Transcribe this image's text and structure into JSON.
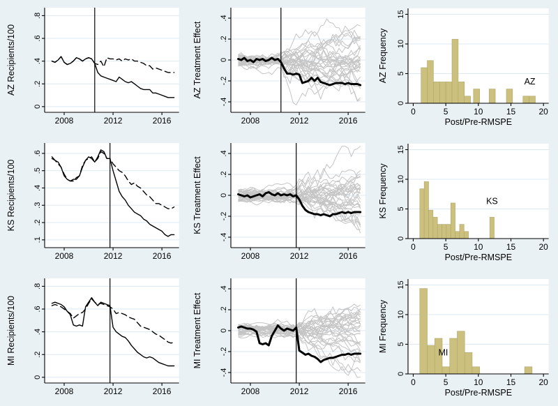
{
  "colors": {
    "page_background": "#eaf1f4",
    "plot_background": "#ffffff",
    "gridline": "#dde9f1",
    "axis": "#000000",
    "text": "#000000",
    "treated_line": "#000000",
    "synthetic_line": "#000000",
    "placebo_line": "#c4c4c4",
    "vline": "#000000",
    "bar_fill": "#ccc07e",
    "bar_edge": "#b2a66a"
  },
  "time_axis": [
    2007,
    2007.25,
    2007.5,
    2007.75,
    2008,
    2008.25,
    2008.5,
    2008.75,
    2009,
    2009.25,
    2009.5,
    2009.75,
    2010,
    2010.25,
    2010.5,
    2010.75,
    2011,
    2011.25,
    2011.5,
    2011.75,
    2012,
    2012.25,
    2012.5,
    2012.75,
    2013,
    2013.25,
    2013.5,
    2013.75,
    2014,
    2014.25,
    2014.5,
    2014.75,
    2015,
    2015.25,
    2015.5,
    2015.75,
    2016,
    2016.25,
    2016.5,
    2016.75,
    2017
  ],
  "chart_data": [
    {
      "id": "az-recipients",
      "type": "line",
      "ylabel": "AZ Recipients/100",
      "xlim": [
        2006.4,
        2017.4
      ],
      "ylim": [
        -0.05,
        0.87
      ],
      "xticks": [
        2008,
        2012,
        2016
      ],
      "xtick_labels": [
        "2008",
        "2012",
        "2016"
      ],
      "yticks": [
        0,
        0.2,
        0.4,
        0.6,
        0.8
      ],
      "ytick_labels": [
        "0",
        ".2",
        ".4",
        ".6",
        ".8"
      ],
      "treatment_year": 2010.5,
      "series": [
        {
          "name": "AZ actual",
          "style": "solid",
          "width": 1.4,
          "y": [
            0.4,
            0.39,
            0.41,
            0.44,
            0.39,
            0.37,
            0.38,
            0.4,
            0.43,
            0.42,
            0.4,
            0.42,
            0.43,
            0.42,
            0.38,
            0.3,
            0.27,
            0.26,
            0.25,
            0.24,
            0.23,
            0.22,
            0.26,
            0.24,
            0.22,
            0.21,
            0.22,
            0.2,
            0.18,
            0.16,
            0.15,
            0.15,
            0.15,
            0.12,
            0.12,
            0.11,
            0.1,
            0.09,
            0.08,
            0.08,
            0.08
          ]
        },
        {
          "name": "synthetic AZ",
          "style": "dashed",
          "width": 1.4,
          "y": [
            0.4,
            0.39,
            0.41,
            0.44,
            0.39,
            0.37,
            0.38,
            0.4,
            0.43,
            0.42,
            0.4,
            0.42,
            0.43,
            0.42,
            0.38,
            0.37,
            0.4,
            0.35,
            0.43,
            0.42,
            0.42,
            0.41,
            0.42,
            0.4,
            0.42,
            0.41,
            0.42,
            0.4,
            0.4,
            0.39,
            0.38,
            0.36,
            0.36,
            0.33,
            0.34,
            0.33,
            0.32,
            0.31,
            0.3,
            0.3,
            0.3
          ]
        }
      ]
    },
    {
      "id": "az-effect",
      "type": "line",
      "ylabel": "AZ Treatment Effect",
      "xlim": [
        2006.4,
        2017.4
      ],
      "ylim": [
        -0.5,
        0.5
      ],
      "xticks": [
        2008,
        2012,
        2016
      ],
      "xtick_labels": [
        "2008",
        "2012",
        "2016"
      ],
      "yticks": [
        -0.4,
        -0.2,
        0,
        0.2,
        0.4
      ],
      "ytick_labels": [
        "-.4",
        "-.2",
        "0",
        ".2",
        ".4"
      ],
      "treatment_year": 2010.5,
      "placebos": {
        "count": 32,
        "seed": 11
      },
      "series": [
        {
          "name": "AZ treatment effect",
          "style": "solid",
          "width": 3,
          "y": [
            0.01,
            0.0,
            0.02,
            -0.01,
            0.0,
            -0.02,
            0.01,
            0.0,
            0.01,
            -0.01,
            0.0,
            0.02,
            0.0,
            0.01,
            -0.02,
            -0.08,
            -0.13,
            -0.13,
            -0.14,
            -0.13,
            -0.14,
            -0.22,
            -0.21,
            -0.2,
            -0.17,
            -0.2,
            -0.17,
            -0.21,
            -0.22,
            -0.23,
            -0.24,
            -0.23,
            -0.22,
            -0.22,
            -0.22,
            -0.23,
            -0.22,
            -0.23,
            -0.23,
            -0.23,
            -0.24
          ]
        }
      ]
    },
    {
      "id": "az-rmspe-hist",
      "type": "bar",
      "ylabel": "AZ Frequency",
      "xlabel": "Post/Pre-RMSPE",
      "xlim": [
        -0.8,
        20.8
      ],
      "ylim": [
        0,
        16
      ],
      "xticks": [
        0,
        5,
        10,
        15,
        20
      ],
      "xtick_labels": [
        "0",
        "5",
        "10",
        "15",
        "20"
      ],
      "yticks": [
        0,
        5,
        10,
        15
      ],
      "ytick_labels": [
        "0",
        "5",
        "10",
        "15"
      ],
      "bar_width": 0.95,
      "bars": [
        [
          1.2,
          6.0
        ],
        [
          2.15,
          7.2
        ],
        [
          3.1,
          3.6
        ],
        [
          4.05,
          3.6
        ],
        [
          5.0,
          3.6
        ],
        [
          5.95,
          10.8
        ],
        [
          6.9,
          3.6
        ],
        [
          7.85,
          1.2
        ],
        [
          9.25,
          2.4
        ],
        [
          11.65,
          2.4
        ],
        [
          14.3,
          2.4
        ],
        [
          16.85,
          1.2
        ],
        [
          17.8,
          1.2
        ]
      ],
      "annotation": {
        "text": "AZ",
        "x": 17.9,
        "y": 3.2
      }
    },
    {
      "id": "ks-recipients",
      "type": "line",
      "ylabel": "KS Recipients/100",
      "xlim": [
        2006.4,
        2017.4
      ],
      "ylim": [
        0.055,
        0.66
      ],
      "xticks": [
        2008,
        2012,
        2016
      ],
      "xtick_labels": [
        "2008",
        "2012",
        "2016"
      ],
      "yticks": [
        0.1,
        0.2,
        0.3,
        0.4,
        0.5,
        0.6
      ],
      "ytick_labels": [
        ".1",
        ".2",
        ".3",
        ".4",
        ".5",
        ".6"
      ],
      "treatment_year": 2011.75,
      "series": [
        {
          "name": "KS actual",
          "style": "solid",
          "width": 1.4,
          "y": [
            0.58,
            0.56,
            0.55,
            0.52,
            0.47,
            0.45,
            0.44,
            0.45,
            0.45,
            0.47,
            0.52,
            0.56,
            0.58,
            0.57,
            0.55,
            0.58,
            0.62,
            0.61,
            0.57,
            0.57,
            0.5,
            0.44,
            0.38,
            0.35,
            0.33,
            0.3,
            0.28,
            0.26,
            0.25,
            0.24,
            0.22,
            0.21,
            0.19,
            0.18,
            0.17,
            0.16,
            0.15,
            0.13,
            0.12,
            0.13,
            0.13
          ]
        },
        {
          "name": "synthetic KS",
          "style": "dashed",
          "width": 1.4,
          "y": [
            0.57,
            0.56,
            0.54,
            0.52,
            0.48,
            0.45,
            0.44,
            0.44,
            0.46,
            0.47,
            0.53,
            0.56,
            0.57,
            0.58,
            0.55,
            0.57,
            0.61,
            0.6,
            0.57,
            0.57,
            0.54,
            0.52,
            0.5,
            0.49,
            0.47,
            0.44,
            0.42,
            0.43,
            0.41,
            0.4,
            0.38,
            0.36,
            0.35,
            0.33,
            0.31,
            0.31,
            0.3,
            0.29,
            0.28,
            0.28,
            0.29
          ]
        }
      ]
    },
    {
      "id": "ks-effect",
      "type": "line",
      "ylabel": "KS Treatment Effect",
      "xlim": [
        2006.4,
        2017.4
      ],
      "ylim": [
        -0.5,
        0.5
      ],
      "xticks": [
        2008,
        2012,
        2016
      ],
      "xtick_labels": [
        "2008",
        "2012",
        "2016"
      ],
      "yticks": [
        -0.4,
        -0.2,
        0,
        0.2,
        0.4
      ],
      "ytick_labels": [
        "-.4",
        "-.2",
        "0",
        ".2",
        ".4"
      ],
      "treatment_year": 2011.75,
      "placebos": {
        "count": 32,
        "seed": 23
      },
      "series": [
        {
          "name": "KS treatment effect",
          "style": "solid",
          "width": 3,
          "y": [
            0.01,
            0.0,
            -0.01,
            0.0,
            -0.02,
            -0.01,
            0.0,
            0.01,
            -0.01,
            0.02,
            0.03,
            0.01,
            0.0,
            0.02,
            0.0,
            0.01,
            0.0,
            0.01,
            -0.01,
            0.0,
            -0.04,
            -0.1,
            -0.14,
            -0.16,
            -0.17,
            -0.18,
            -0.18,
            -0.19,
            -0.18,
            -0.19,
            -0.2,
            -0.18,
            -0.18,
            -0.17,
            -0.16,
            -0.17,
            -0.16,
            -0.17,
            -0.16,
            -0.16,
            -0.16
          ]
        }
      ]
    },
    {
      "id": "ks-rmspe-hist",
      "type": "bar",
      "ylabel": "KS Frequency",
      "xlabel": "Post/Pre-RMSPE",
      "xlim": [
        -0.8,
        20.8
      ],
      "ylim": [
        0,
        16
      ],
      "xticks": [
        0,
        5,
        10,
        15,
        20
      ],
      "xtick_labels": [
        "0",
        "5",
        "10",
        "15",
        "20"
      ],
      "yticks": [
        0,
        5,
        10,
        15
      ],
      "ytick_labels": [
        "0",
        "5",
        "10",
        "15"
      ],
      "bar_width": 0.68,
      "bars": [
        [
          1.0,
          8.4
        ],
        [
          1.68,
          9.6
        ],
        [
          2.36,
          4.8
        ],
        [
          3.04,
          3.6
        ],
        [
          3.72,
          2.4
        ],
        [
          4.4,
          2.4
        ],
        [
          5.08,
          2.4
        ],
        [
          5.76,
          6.0
        ],
        [
          6.44,
          1.2
        ],
        [
          7.12,
          2.4
        ],
        [
          7.8,
          1.2
        ],
        [
          11.75,
          3.6
        ]
      ],
      "annotation": {
        "text": "KS",
        "x": 12.1,
        "y": 5.8
      }
    },
    {
      "id": "mi-recipients",
      "type": "line",
      "ylabel": "MI Recipients/100",
      "xlim": [
        2006.4,
        2017.4
      ],
      "ylim": [
        -0.05,
        0.87
      ],
      "xticks": [
        2008,
        2012,
        2016
      ],
      "xtick_labels": [
        "2008",
        "2012",
        "2016"
      ],
      "yticks": [
        0,
        0.2,
        0.4,
        0.6,
        0.8
      ],
      "ytick_labels": [
        "0",
        ".2",
        ".4",
        ".6",
        ".8"
      ],
      "treatment_year": 2011.75,
      "series": [
        {
          "name": "MI actual",
          "style": "solid",
          "width": 1.4,
          "y": [
            0.65,
            0.66,
            0.65,
            0.64,
            0.62,
            0.58,
            0.55,
            0.46,
            0.45,
            0.46,
            0.45,
            0.62,
            0.66,
            0.7,
            0.66,
            0.63,
            0.66,
            0.65,
            0.64,
            0.63,
            0.44,
            0.4,
            0.38,
            0.36,
            0.35,
            0.32,
            0.28,
            0.25,
            0.22,
            0.2,
            0.18,
            0.17,
            0.18,
            0.17,
            0.15,
            0.13,
            0.12,
            0.11,
            0.1,
            0.1,
            0.1
          ]
        },
        {
          "name": "synthetic MI",
          "style": "dashed",
          "width": 1.4,
          "y": [
            0.63,
            0.64,
            0.63,
            0.62,
            0.6,
            0.58,
            0.56,
            0.52,
            0.54,
            0.56,
            0.57,
            0.6,
            0.65,
            0.69,
            0.66,
            0.64,
            0.65,
            0.64,
            0.63,
            0.62,
            0.6,
            0.56,
            0.57,
            0.56,
            0.55,
            0.53,
            0.52,
            0.51,
            0.48,
            0.45,
            0.44,
            0.43,
            0.42,
            0.4,
            0.38,
            0.37,
            0.35,
            0.33,
            0.31,
            0.3,
            0.31
          ]
        }
      ]
    },
    {
      "id": "mi-effect",
      "type": "line",
      "ylabel": "MI Treatment Effect",
      "xlim": [
        2006.4,
        2017.4
      ],
      "ylim": [
        -0.5,
        0.5
      ],
      "xticks": [
        2008,
        2012,
        2016
      ],
      "xtick_labels": [
        "2008",
        "2012",
        "2016"
      ],
      "yticks": [
        -0.4,
        -0.2,
        0,
        0.2,
        0.4
      ],
      "ytick_labels": [
        "-.4",
        "-.2",
        "0",
        ".2",
        ".4"
      ],
      "treatment_year": 2011.75,
      "placebos": {
        "count": 32,
        "seed": 37
      },
      "series": [
        {
          "name": "MI treatment effect",
          "style": "solid",
          "width": 3,
          "y": [
            0.03,
            0.04,
            0.03,
            0.02,
            0.02,
            0.01,
            -0.01,
            -0.12,
            -0.13,
            -0.12,
            -0.14,
            -0.05,
            0.0,
            0.05,
            0.02,
            0.0,
            0.02,
            0.01,
            0.0,
            0.03,
            -0.19,
            -0.21,
            -0.23,
            -0.22,
            -0.24,
            -0.25,
            -0.27,
            -0.3,
            -0.28,
            -0.27,
            -0.26,
            -0.26,
            -0.25,
            -0.24,
            -0.23,
            -0.23,
            -0.22,
            -0.23,
            -0.22,
            -0.22,
            -0.22
          ]
        }
      ]
    },
    {
      "id": "mi-rmspe-hist",
      "type": "bar",
      "ylabel": "MI Frequency",
      "xlabel": "Post/Pre-RMSPE",
      "xlim": [
        -0.8,
        20.8
      ],
      "ylim": [
        0,
        16
      ],
      "xticks": [
        0,
        5,
        10,
        15,
        20
      ],
      "xtick_labels": [
        "0",
        "5",
        "10",
        "15",
        "20"
      ],
      "yticks": [
        0,
        5,
        10,
        15
      ],
      "ytick_labels": [
        "0",
        "5",
        "10",
        "15"
      ],
      "bar_width": 1.15,
      "bars": [
        [
          1.0,
          14.4
        ],
        [
          2.15,
          4.8
        ],
        [
          3.3,
          6.0
        ],
        [
          4.45,
          1.2
        ],
        [
          5.6,
          6.0
        ],
        [
          6.75,
          7.2
        ],
        [
          7.9,
          3.6
        ],
        [
          9.05,
          1.2
        ],
        [
          17.1,
          1.2
        ]
      ],
      "annotation": {
        "text": "MI",
        "x": 4.6,
        "y": 3.1
      }
    }
  ]
}
